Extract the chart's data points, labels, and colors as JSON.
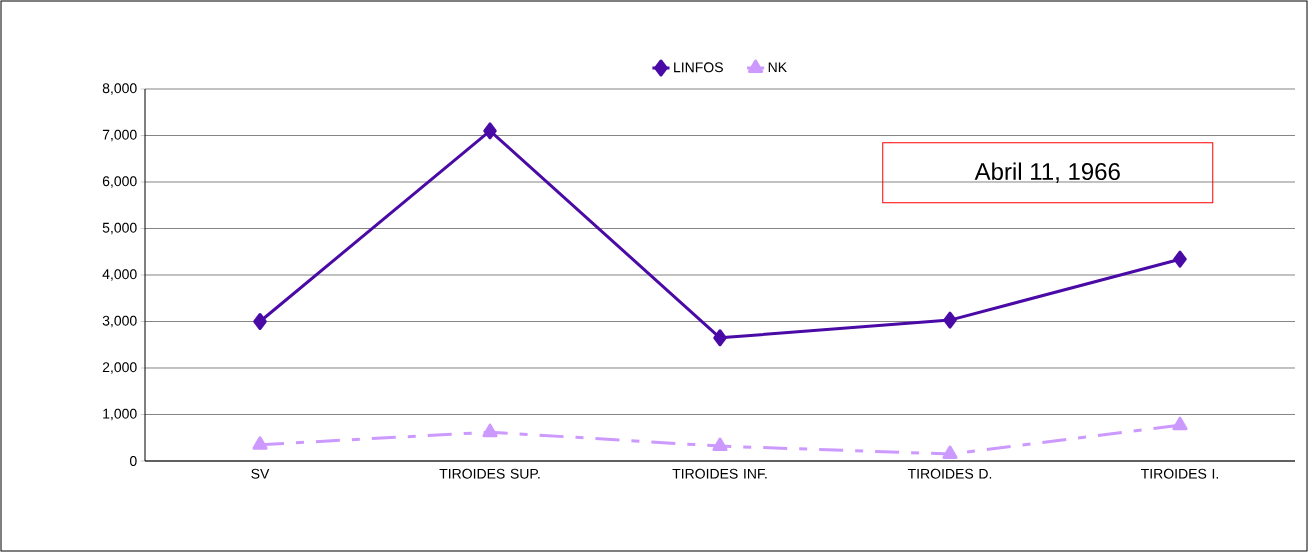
{
  "chart_data": {
    "type": "line",
    "categories": [
      "SV",
      "TIROIDES SUP.",
      "TIROIDES INF.",
      "TIROIDES D.",
      "TIROIDES I."
    ],
    "series": [
      {
        "name": "LINFOS",
        "color": "#4a0aa6",
        "values": [
          3000,
          7100,
          2650,
          3030,
          4340
        ],
        "marker": "diamond",
        "line_style": "solid"
      },
      {
        "name": "NK",
        "color": "#cc99ff",
        "values": [
          350,
          620,
          320,
          150,
          770
        ],
        "marker": "triangle",
        "line_style": "dashed"
      }
    ],
    "ylim": [
      0,
      8000
    ],
    "yticks": [
      0,
      {
        "value": 1000,
        "label": "1,000"
      },
      {
        "value": 2000,
        "label": "2,000"
      },
      {
        "value": 3000,
        "label": "3,000"
      },
      {
        "value": 4000,
        "label": "4,000"
      },
      {
        "value": 5000,
        "label": "5,000"
      },
      {
        "value": 6000,
        "label": "6,000"
      },
      {
        "value": 7000,
        "label": "7,000"
      },
      {
        "value": 8000,
        "label": "8,000"
      }
    ],
    "grid": "y",
    "legend": "top",
    "annotations": [
      "Abril 11, 1966"
    ]
  }
}
